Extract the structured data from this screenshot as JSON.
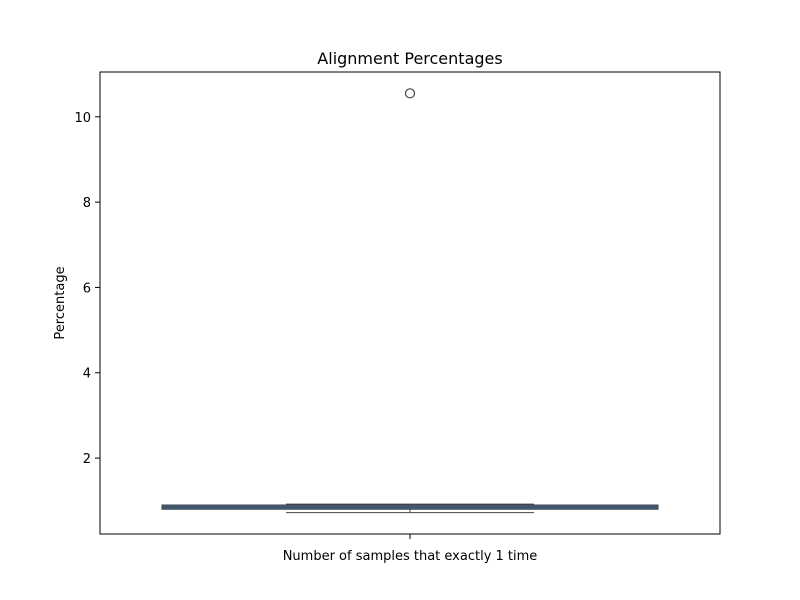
{
  "chart_data": {
    "type": "box",
    "title": "Alignment Percentages",
    "xlabel": "",
    "ylabel": "Percentage",
    "ylim": [
      0.22,
      11.05
    ],
    "yticks": [
      2,
      4,
      6,
      8,
      10
    ],
    "categories": [
      "Number of samples that exactly 1 time"
    ],
    "box": {
      "whisker_low": 0.72,
      "q1": 0.8,
      "median": 0.85,
      "q3": 0.9,
      "whisker_high": 0.92,
      "outliers": [
        10.55
      ]
    },
    "box_color": "#3b6791",
    "grid": false
  }
}
